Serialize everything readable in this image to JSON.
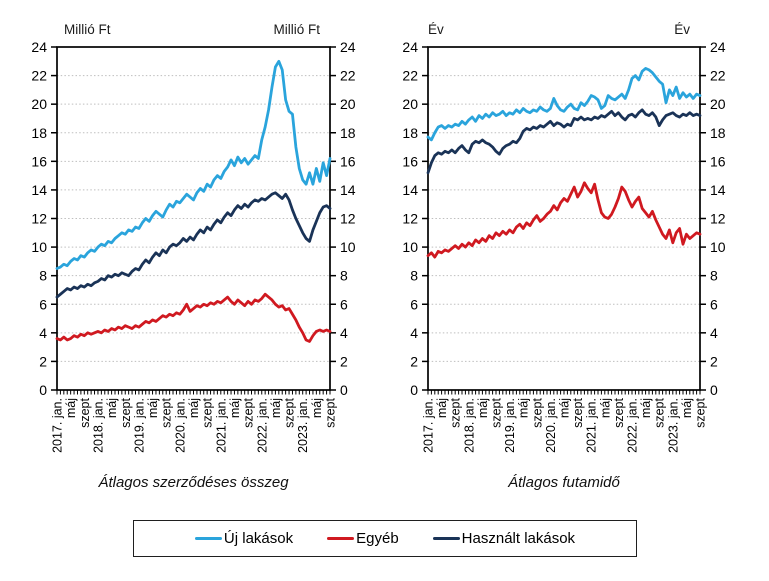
{
  "figure": {
    "panels": [
      {
        "unit_left": "Millió Ft",
        "unit_right": "Millió Ft",
        "title": "Átlagos szerződéses összeg"
      },
      {
        "unit_left": "Év",
        "unit_right": "Év",
        "title": "Átlagos futamidő"
      }
    ],
    "legend": {
      "items": [
        {
          "label": "Új lakások",
          "color": "#2AA4DC"
        },
        {
          "label": "Egyéb",
          "color": "#D01920"
        },
        {
          "label": "Használt lakások",
          "color": "#1A3357"
        }
      ]
    }
  },
  "chart_data": [
    {
      "type": "line",
      "title": "Átlagos szerződéses összeg",
      "ylabel": "Millió Ft",
      "ylim": [
        0,
        24
      ],
      "y_tick_step": 2,
      "grid": "dotted-horizontal",
      "x_label_every": 4,
      "x_tick_labels": [
        "2017. jan.",
        "máj",
        "szept",
        "2018. jan.",
        "máj",
        "szept",
        "2019. jan.",
        "máj",
        "szept",
        "2020. jan.",
        "máj",
        "szept",
        "2021. jan.",
        "máj",
        "szept",
        "2022. jan.",
        "máj",
        "szept",
        "2023. jan.",
        "máj",
        "szept"
      ],
      "series": [
        {
          "name": "Új lakások",
          "color": "#2AA4DC",
          "values": [
            8.5,
            8.6,
            8.8,
            8.7,
            9.0,
            9.2,
            9.1,
            9.4,
            9.3,
            9.6,
            9.8,
            9.7,
            10.0,
            10.2,
            10.1,
            10.4,
            10.3,
            10.6,
            10.8,
            11.0,
            10.9,
            11.2,
            11.1,
            11.4,
            11.3,
            11.7,
            12.0,
            11.8,
            12.2,
            12.5,
            12.3,
            12.1,
            12.6,
            13.0,
            12.8,
            13.2,
            13.1,
            13.4,
            13.7,
            13.5,
            13.3,
            13.8,
            14.1,
            13.9,
            14.4,
            14.2,
            14.7,
            15.0,
            14.8,
            15.3,
            15.6,
            16.1,
            15.7,
            16.3,
            15.9,
            16.2,
            15.8,
            16.1,
            16.4,
            16.2,
            17.5,
            18.4,
            19.6,
            21.2,
            22.6,
            23.0,
            22.4,
            20.3,
            19.5,
            19.3,
            17.0,
            15.5,
            14.7,
            14.4,
            15.2,
            14.4,
            15.5,
            14.6,
            15.9,
            15.0,
            16.2
          ]
        },
        {
          "name": "Egyéb",
          "color": "#D01920",
          "values": [
            3.6,
            3.5,
            3.7,
            3.5,
            3.6,
            3.8,
            3.7,
            3.9,
            3.8,
            4.0,
            3.9,
            4.0,
            4.1,
            4.0,
            4.2,
            4.1,
            4.3,
            4.2,
            4.4,
            4.3,
            4.5,
            4.4,
            4.3,
            4.5,
            4.4,
            4.6,
            4.8,
            4.7,
            4.9,
            4.8,
            5.0,
            5.2,
            5.1,
            5.3,
            5.2,
            5.4,
            5.3,
            5.6,
            6.0,
            5.5,
            5.7,
            5.9,
            5.8,
            6.0,
            5.9,
            6.1,
            6.0,
            6.2,
            6.1,
            6.3,
            6.5,
            6.2,
            6.0,
            6.3,
            6.1,
            5.9,
            6.2,
            6.0,
            6.3,
            6.2,
            6.4,
            6.7,
            6.5,
            6.3,
            6.0,
            5.8,
            5.9,
            5.6,
            5.7,
            5.3,
            4.9,
            4.4,
            4.0,
            3.5,
            3.4,
            3.8,
            4.1,
            4.2,
            4.1,
            4.2,
            4.1
          ]
        },
        {
          "name": "Használt lakások",
          "color": "#1A3357",
          "values": [
            6.5,
            6.7,
            6.9,
            7.1,
            7.0,
            7.2,
            7.1,
            7.3,
            7.2,
            7.4,
            7.3,
            7.5,
            7.6,
            7.8,
            7.7,
            8.0,
            7.9,
            8.1,
            8.0,
            8.2,
            8.1,
            8.0,
            8.3,
            8.5,
            8.4,
            8.8,
            9.1,
            8.9,
            9.3,
            9.6,
            9.4,
            9.8,
            9.6,
            10.0,
            10.2,
            10.1,
            10.3,
            10.6,
            10.4,
            10.7,
            10.5,
            10.9,
            11.2,
            11.0,
            11.4,
            11.2,
            11.6,
            11.9,
            11.7,
            12.1,
            12.4,
            12.2,
            12.6,
            12.9,
            12.7,
            13.0,
            12.8,
            13.1,
            13.3,
            13.2,
            13.4,
            13.3,
            13.5,
            13.7,
            13.8,
            13.6,
            13.4,
            13.7,
            13.3,
            12.6,
            12.0,
            11.5,
            11.0,
            10.6,
            10.4,
            11.2,
            11.8,
            12.4,
            12.8,
            12.9,
            12.7
          ]
        }
      ]
    },
    {
      "type": "line",
      "title": "Átlagos futamidő",
      "ylabel": "Év",
      "ylim": [
        0,
        24
      ],
      "y_tick_step": 2,
      "grid": "dotted-horizontal",
      "x_label_every": 4,
      "x_tick_labels": [
        "2017. jan.",
        "máj",
        "szept",
        "2018. jan.",
        "máj",
        "szept",
        "2019. jan.",
        "máj",
        "szept",
        "2020. jan.",
        "máj",
        "szept",
        "2021. jan.",
        "máj",
        "szept",
        "2022. jan.",
        "máj",
        "szept",
        "2023. jan.",
        "máj",
        "szept"
      ],
      "series": [
        {
          "name": "Új lakások",
          "color": "#2AA4DC",
          "values": [
            17.7,
            17.5,
            18.0,
            18.4,
            18.5,
            18.3,
            18.5,
            18.4,
            18.6,
            18.5,
            18.8,
            18.6,
            18.9,
            19.1,
            18.8,
            19.2,
            19.0,
            19.3,
            19.1,
            19.4,
            19.2,
            19.3,
            19.5,
            19.2,
            19.4,
            19.3,
            19.6,
            19.4,
            19.7,
            19.5,
            19.4,
            19.6,
            19.5,
            19.8,
            19.6,
            19.5,
            19.7,
            20.4,
            19.9,
            19.6,
            19.5,
            19.8,
            20.0,
            19.7,
            19.6,
            20.1,
            19.9,
            20.2,
            20.6,
            20.5,
            20.3,
            19.7,
            19.9,
            20.6,
            20.4,
            20.3,
            20.5,
            20.7,
            20.4,
            21.0,
            21.8,
            22.0,
            21.7,
            22.3,
            22.5,
            22.4,
            22.2,
            21.9,
            21.6,
            21.4,
            20.1,
            21.0,
            20.6,
            21.2,
            20.4,
            20.8,
            20.5,
            20.7,
            20.4,
            20.7,
            20.6
          ]
        },
        {
          "name": "Egyéb",
          "color": "#D01920",
          "values": [
            9.4,
            9.6,
            9.3,
            9.7,
            9.6,
            9.8,
            9.7,
            9.9,
            10.1,
            9.9,
            10.2,
            10.0,
            10.3,
            10.1,
            10.5,
            10.3,
            10.6,
            10.4,
            10.8,
            10.6,
            11.0,
            10.8,
            11.1,
            10.9,
            11.2,
            11.0,
            11.4,
            11.6,
            11.3,
            11.7,
            11.5,
            11.9,
            12.2,
            11.8,
            12.0,
            12.3,
            12.5,
            12.9,
            12.6,
            13.1,
            13.4,
            13.2,
            13.7,
            14.2,
            13.5,
            13.9,
            14.5,
            14.1,
            13.8,
            14.4,
            13.3,
            12.4,
            12.1,
            12.0,
            12.3,
            12.8,
            13.4,
            14.2,
            13.9,
            13.3,
            12.8,
            13.2,
            13.5,
            12.7,
            12.4,
            12.1,
            12.5,
            11.9,
            11.4,
            10.9,
            10.6,
            11.2,
            10.3,
            11.0,
            11.3,
            10.2,
            10.9,
            10.6,
            10.8,
            11.0,
            10.9
          ]
        },
        {
          "name": "Használt lakások",
          "color": "#1A3357",
          "values": [
            15.2,
            15.9,
            16.4,
            16.6,
            16.5,
            16.7,
            16.6,
            16.8,
            16.6,
            16.9,
            17.1,
            16.8,
            16.6,
            17.2,
            17.4,
            17.3,
            17.5,
            17.3,
            17.2,
            17.0,
            16.7,
            16.5,
            16.9,
            17.1,
            17.2,
            17.4,
            17.3,
            17.6,
            18.1,
            18.3,
            18.2,
            18.4,
            18.3,
            18.5,
            18.4,
            18.6,
            18.8,
            18.5,
            18.7,
            18.6,
            18.4,
            18.6,
            18.5,
            19.0,
            18.9,
            19.1,
            18.9,
            19.0,
            18.9,
            19.1,
            19.0,
            19.2,
            19.1,
            19.3,
            19.5,
            19.2,
            19.4,
            19.1,
            18.9,
            19.2,
            19.3,
            19.1,
            19.4,
            19.6,
            19.3,
            19.2,
            19.4,
            19.1,
            18.5,
            18.9,
            19.2,
            19.3,
            19.4,
            19.2,
            19.1,
            19.3,
            19.2,
            19.4,
            19.2,
            19.3,
            19.2
          ]
        }
      ]
    }
  ]
}
